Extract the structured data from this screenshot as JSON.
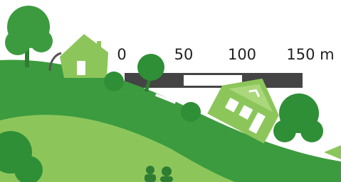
{
  "scale_bar": {
    "labels": [
      "0",
      "50",
      "100",
      "150 m"
    ]
  }
}
